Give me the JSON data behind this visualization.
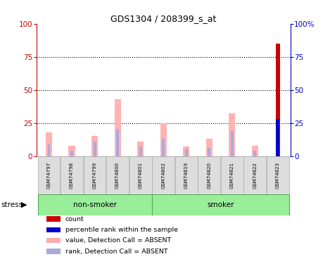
{
  "title": "GDS1304 / 208399_s_at",
  "samples": [
    "GSM74797",
    "GSM74798",
    "GSM74799",
    "GSM74800",
    "GSM74801",
    "GSM74802",
    "GSM74819",
    "GSM74820",
    "GSM74821",
    "GSM74822",
    "GSM74823"
  ],
  "groups": [
    {
      "label": "non-smoker",
      "start": 0,
      "end": 5
    },
    {
      "label": "smoker",
      "start": 5,
      "end": 11
    }
  ],
  "group_label": "stress",
  "pink_values": [
    18,
    8,
    15,
    43,
    11,
    25,
    7,
    13,
    32,
    8,
    0
  ],
  "blue_values": [
    9,
    4,
    11,
    20,
    7,
    13,
    5,
    6,
    19,
    4,
    28
  ],
  "red_values": [
    0,
    0,
    0,
    0,
    0,
    0,
    0,
    0,
    0,
    0,
    85
  ],
  "ylim": [
    0,
    100
  ],
  "y2lim": [
    0,
    100
  ],
  "yticks": [
    0,
    25,
    50,
    75,
    100
  ],
  "y2ticklabels": [
    "0",
    "25",
    "50",
    "75",
    "100%"
  ],
  "left_axis_color": "#cc0000",
  "right_axis_color": "#0000cc",
  "bg_color": "#ffffff",
  "group_box_color": "#99ee99",
  "sample_box_color": "#dddddd",
  "legend_items": [
    {
      "color": "#cc0000",
      "label": "count"
    },
    {
      "color": "#0000cc",
      "label": "percentile rank within the sample"
    },
    {
      "color": "#ffaaaa",
      "label": "value, Detection Call = ABSENT"
    },
    {
      "color": "#aaaadd",
      "label": "rank, Detection Call = ABSENT"
    }
  ]
}
